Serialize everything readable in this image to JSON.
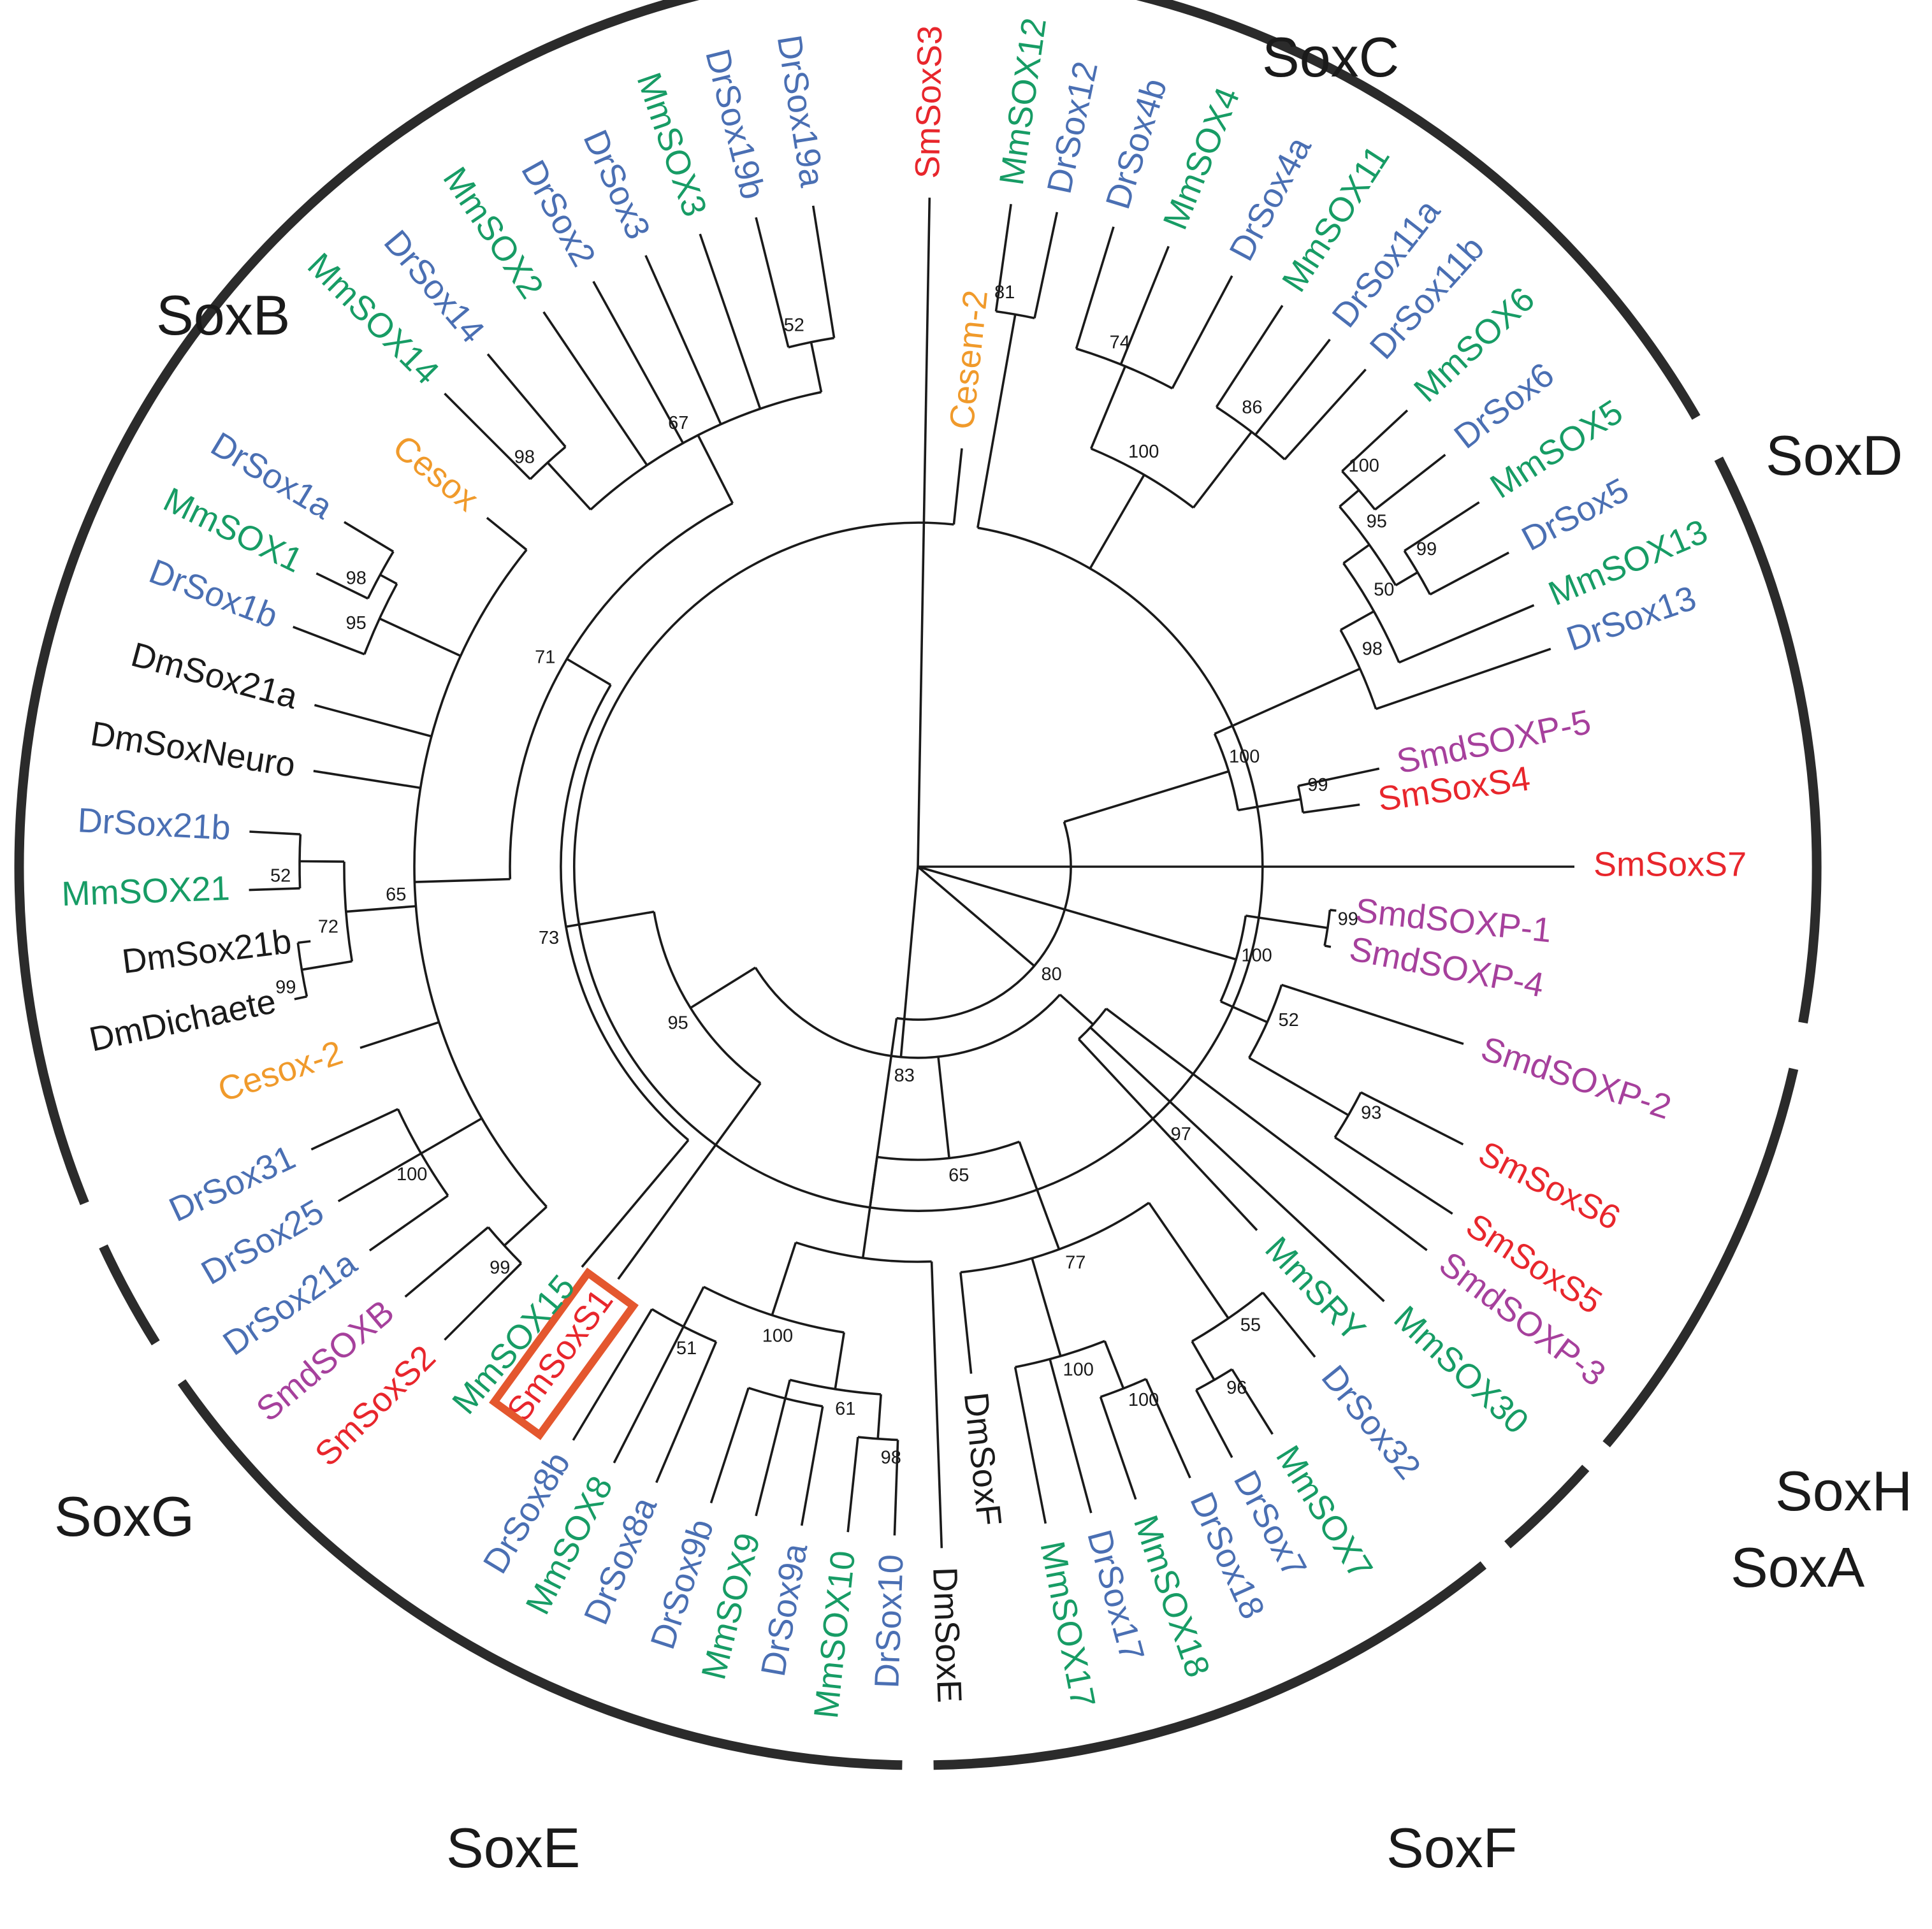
{
  "figure": {
    "type": "circular phylogenetic tree of Sox proteins"
  },
  "colors": {
    "Sm": "#e8262c",
    "Dr": "#4a6fb3",
    "Mm": "#179c65",
    "Smd": "#a6409c",
    "Ce": "#f09a2b",
    "Dm": "#1a1a1a",
    "highlight": "#e4572e"
  },
  "clades": [
    "SoxC",
    "SoxD",
    "SoxH",
    "SoxA",
    "SoxF",
    "SoxE",
    "SoxG",
    "SoxB"
  ],
  "leaves": [
    {
      "label": "SmSoxS3",
      "sp": "Sm"
    },
    {
      "label": "MmSOX12",
      "sp": "Mm"
    },
    {
      "label": "DrSox12",
      "sp": "Dr"
    },
    {
      "label": "DrSox4b",
      "sp": "Dr"
    },
    {
      "label": "MmSOX4",
      "sp": "Mm"
    },
    {
      "label": "DrSox4a",
      "sp": "Dr"
    },
    {
      "label": "MmSOX11",
      "sp": "Mm"
    },
    {
      "label": "DrSox11a",
      "sp": "Dr"
    },
    {
      "label": "DrSox11b",
      "sp": "Dr"
    },
    {
      "label": "MmSOX6",
      "sp": "Mm"
    },
    {
      "label": "DrSox6",
      "sp": "Dr"
    },
    {
      "label": "MmSOX5",
      "sp": "Mm"
    },
    {
      "label": "DrSox5",
      "sp": "Dr"
    },
    {
      "label": "MmSOX13",
      "sp": "Mm"
    },
    {
      "label": "DrSox13",
      "sp": "Dr"
    },
    {
      "label": "SmdSOXP-5",
      "sp": "Smd"
    },
    {
      "label": "SmSoxS4",
      "sp": "Sm"
    },
    {
      "label": "SmSoxS7",
      "sp": "Sm"
    },
    {
      "label": "SmdSOXP-1",
      "sp": "Smd"
    },
    {
      "label": "SmdSOXP-4",
      "sp": "Smd"
    },
    {
      "label": "SmdSOXP-2",
      "sp": "Smd"
    },
    {
      "label": "SmSoxS6",
      "sp": "Sm"
    },
    {
      "label": "SmSoxS5",
      "sp": "Sm"
    },
    {
      "label": "SmdSOXP-3",
      "sp": "Smd"
    },
    {
      "label": "MmSOX30",
      "sp": "Mm"
    },
    {
      "label": "MmSRY",
      "sp": "Mm"
    },
    {
      "label": "DrSox32",
      "sp": "Dr"
    },
    {
      "label": "MmSOX7",
      "sp": "Mm"
    },
    {
      "label": "DrSox7",
      "sp": "Dr"
    },
    {
      "label": "DrSox18",
      "sp": "Dr"
    },
    {
      "label": "MmSOX18",
      "sp": "Mm"
    },
    {
      "label": "DrSox17",
      "sp": "Dr"
    },
    {
      "label": "MmSOX17",
      "sp": "Mm"
    },
    {
      "label": "DmSoxF",
      "sp": "Dm"
    },
    {
      "label": "DmSoxE",
      "sp": "Dm"
    },
    {
      "label": "DrSox10",
      "sp": "Dr"
    },
    {
      "label": "MmSOX10",
      "sp": "Mm"
    },
    {
      "label": "DrSox9a",
      "sp": "Dr"
    },
    {
      "label": "MmSOX9",
      "sp": "Mm"
    },
    {
      "label": "DrSox9b",
      "sp": "Dr"
    },
    {
      "label": "DrSox8a",
      "sp": "Dr"
    },
    {
      "label": "MmSOX8",
      "sp": "Mm"
    },
    {
      "label": "DrSox8b",
      "sp": "Dr"
    },
    {
      "label": "SmSoxS1",
      "sp": "Sm",
      "highlight": true
    },
    {
      "label": "MmSOX15",
      "sp": "Mm"
    },
    {
      "label": "SmSoxS2",
      "sp": "Sm"
    },
    {
      "label": "SmdSOXB",
      "sp": "Smd"
    },
    {
      "label": "DrSox21a",
      "sp": "Dr"
    },
    {
      "label": "DrSox25",
      "sp": "Dr"
    },
    {
      "label": "DrSox31",
      "sp": "Dr"
    },
    {
      "label": "Cesox-2",
      "sp": "Ce"
    },
    {
      "label": "DmDichaete",
      "sp": "Dm"
    },
    {
      "label": "DmSox21b",
      "sp": "Dm"
    },
    {
      "label": "MmSOX21",
      "sp": "Mm"
    },
    {
      "label": "DrSox21b",
      "sp": "Dr"
    },
    {
      "label": "DmSoxNeuro",
      "sp": "Dm"
    },
    {
      "label": "DmSox21a",
      "sp": "Dm"
    },
    {
      "label": "DrSox1b",
      "sp": "Dr"
    },
    {
      "label": "MmSOX1",
      "sp": "Mm"
    },
    {
      "label": "DrSox1a",
      "sp": "Dr"
    },
    {
      "label": "Cesox",
      "sp": "Ce"
    },
    {
      "label": "MmSOX14",
      "sp": "Mm"
    },
    {
      "label": "DrSox14",
      "sp": "Dr"
    },
    {
      "label": "MmSOX2",
      "sp": "Mm"
    },
    {
      "label": "DrSox2",
      "sp": "Dr"
    },
    {
      "label": "DrSox3",
      "sp": "Dr"
    },
    {
      "label": "MmSOX3",
      "sp": "Mm"
    },
    {
      "label": "DrSox19b",
      "sp": "Dr"
    },
    {
      "label": "DrSox19a",
      "sp": "Dr"
    },
    {
      "label": "Cesem-2",
      "sp": "Ce"
    }
  ],
  "tree": {
    "name": "root",
    "children": [
      {
        "name": "n80",
        "boot": "80",
        "children": [
          {
            "name": "nSoxC",
            "children": [
              {
                "name": "n81",
                "boot": "81",
                "children": [
                  {
                    "leaf": "MmSOX12"
                  },
                  {
                    "leaf": "DrSox12"
                  }
                ]
              },
              {
                "name": "n100c",
                "boot": "100",
                "children": [
                  {
                    "name": "n74",
                    "boot": "74",
                    "children": [
                      {
                        "leaf": "DrSox4b"
                      },
                      {
                        "leaf": "MmSOX4"
                      },
                      {
                        "leaf": "DrSox4a"
                      }
                    ]
                  },
                  {
                    "name": "n86",
                    "boot": "86",
                    "children": [
                      {
                        "leaf": "MmSOX11"
                      },
                      {
                        "leaf": "DrSox11a"
                      },
                      {
                        "leaf": "DrSox11b"
                      }
                    ]
                  }
                ]
              },
              {
                "leaf": "Cesem-2"
              }
            ]
          },
          {
            "name": "n100d",
            "boot": "100",
            "children": [
              {
                "name": "n98d",
                "boot": "98",
                "children": [
                  {
                    "name": "n50",
                    "boot": "50",
                    "children": [
                      {
                        "name": "n95d",
                        "boot": "95",
                        "children": [
                          {
                            "name": "n100d2",
                            "boot": "100",
                            "children": [
                              {
                                "leaf": "MmSOX6"
                              },
                              {
                                "leaf": "DrSox6"
                              }
                            ]
                          },
                          {
                            "name": "n99d",
                            "boot": "99",
                            "children": [
                              {
                                "leaf": "MmSOX5"
                              },
                              {
                                "leaf": "DrSox5"
                              }
                            ]
                          }
                        ]
                      },
                      {
                        "leaf": "MmSOX13"
                      }
                    ]
                  },
                  {
                    "leaf": "DrSox13"
                  }
                ]
              },
              {
                "name": "n99s",
                "boot": "99",
                "children": [
                  {
                    "leaf": "SmdSOXP-5"
                  },
                  {
                    "leaf": "SmSoxS4"
                  }
                ]
              }
            ]
          }
        ]
      },
      {
        "leaf": "SmSoxS7"
      },
      {
        "name": "n100h",
        "boot": "100",
        "children": [
          {
            "name": "n99h",
            "boot": "99",
            "children": [
              {
                "leaf": "SmdSOXP-1"
              },
              {
                "leaf": "SmdSOXP-4"
              }
            ]
          },
          {
            "name": "n52h",
            "boot": "52",
            "children": [
              {
                "leaf": "SmdSOXP-2"
              },
              {
                "name": "n93",
                "boot": "93",
                "children": [
                  {
                    "leaf": "SmSoxS6"
                  },
                  {
                    "leaf": "SmSoxS5"
                  }
                ]
              }
            ]
          }
        ]
      },
      {
        "name": "n83",
        "boot": "83",
        "children": [
          {
            "name": "nSoxA",
            "children": [
              {
                "leaf": "SmdSOXP-3"
              },
              {
                "leaf": "MmSOX30"
              },
              {
                "name": "n97",
                "boot": "97",
                "children": [
                  {
                    "leaf": "MmSRY"
                  }
                ]
              }
            ]
          },
          {
            "name": "n65",
            "boot": "65",
            "children": [
              {
                "name": "n77",
                "boot": "77",
                "children": [
                  {
                    "name": "n55",
                    "boot": "55",
                    "children": [
                      {
                        "leaf": "DrSox32"
                      },
                      {
                        "name": "n96",
                        "boot": "96",
                        "children": [
                          {
                            "leaf": "MmSOX7"
                          },
                          {
                            "leaf": "DrSox7"
                          }
                        ]
                      }
                    ]
                  },
                  {
                    "name": "n100f",
                    "boot": "100",
                    "children": [
                      {
                        "name": "n100f2",
                        "boot": "100",
                        "children": [
                          {
                            "leaf": "DrSox18"
                          },
                          {
                            "leaf": "MmSOX18"
                          }
                        ]
                      },
                      {
                        "leaf": "DrSox17"
                      },
                      {
                        "leaf": "MmSOX17"
                      }
                    ]
                  },
                  {
                    "leaf": "DmSoxF"
                  }
                ]
              },
              {
                "name": "nSoxE",
                "children": [
                  {
                    "leaf": "DmSoxE"
                  },
                  {
                    "name": "n100e",
                    "boot": "100",
                    "children": [
                      {
                        "name": "n61",
                        "boot": "61",
                        "children": [
                          {
                            "name": "n98e",
                            "boot": "98",
                            "children": [
                              {
                                "leaf": "DrSox10"
                              },
                              {
                                "leaf": "MmSOX10"
                              }
                            ]
                          },
                          {
                            "name": "n9",
                            "children": [
                              {
                                "leaf": "DrSox9a"
                              },
                              {
                                "leaf": "MmSOX9"
                              },
                              {
                                "leaf": "DrSox9b"
                              }
                            ]
                          }
                        ]
                      },
                      {
                        "name": "n51",
                        "boot": "51",
                        "children": [
                          {
                            "leaf": "DrSox8a"
                          },
                          {
                            "leaf": "MmSOX8"
                          },
                          {
                            "leaf": "DrSox8b"
                          }
                        ]
                      }
                    ]
                  }
                ]
              }
            ]
          },
          {
            "name": "n95b",
            "boot": "95",
            "children": [
              {
                "leaf": "SmSoxS1"
              },
              {
                "name": "n73",
                "boot": "73",
                "children": [
                  {
                    "leaf": "MmSOX15"
                  },
                  {
                    "name": "n71",
                    "boot": "71",
                    "children": [
                      {
                        "name": "n65b",
                        "boot": "65",
                        "children": [
                          {
                            "name": "n99b",
                            "boot": "99",
                            "children": [
                              {
                                "leaf": "SmSoxS2"
                              },
                              {
                                "leaf": "SmdSOXB"
                              }
                            ]
                          },
                          {
                            "name": "n100b",
                            "boot": "100",
                            "children": [
                              {
                                "leaf": "DrSox21a"
                              },
                              {
                                "leaf": "DrSox25"
                              },
                              {
                                "leaf": "DrSox31"
                              }
                            ]
                          },
                          {
                            "leaf": "Cesox-2"
                          },
                          {
                            "name": "n72",
                            "boot": "72",
                            "children": [
                              {
                                "name": "n99b2",
                                "boot": "99",
                                "children": [
                                  {
                                    "leaf": "DmDichaete"
                                  },
                                  {
                                    "leaf": "DmSox21b"
                                  }
                                ]
                              },
                              {
                                "name": "n52b",
                                "boot": "52",
                                "children": [
                                  {
                                    "leaf": "MmSOX21"
                                  },
                                  {
                                    "leaf": "DrSox21b"
                                  }
                                ]
                              }
                            ]
                          },
                          {
                            "leaf": "DmSoxNeuro"
                          },
                          {
                            "leaf": "DmSox21a"
                          },
                          {
                            "name": "n95bb",
                            "boot": "95",
                            "children": [
                              {
                                "leaf": "DrSox1b"
                              },
                              {
                                "name": "n98bb",
                                "boot": "98",
                                "children": [
                                  {
                                    "leaf": "MmSOX1"
                                  },
                                  {
                                    "leaf": "DrSox1a"
                                  }
                                ]
                              }
                            ]
                          },
                          {
                            "leaf": "Cesox"
                          }
                        ]
                      },
                      {
                        "name": "n67",
                        "boot": "67",
                        "children": [
                          {
                            "name": "n98b",
                            "boot": "98",
                            "children": [
                              {
                                "leaf": "MmSOX14"
                              },
                              {
                                "leaf": "DrSox14"
                              }
                            ]
                          },
                          {
                            "leaf": "MmSOX2"
                          },
                          {
                            "leaf": "DrSox2"
                          },
                          {
                            "leaf": "DrSox3"
                          },
                          {
                            "leaf": "MmSOX3"
                          },
                          {
                            "name": "n52s",
                            "boot": "52",
                            "children": [
                              {
                                "leaf": "DrSox19b"
                              },
                              {
                                "leaf": "DrSox19a"
                              }
                            ]
                          }
                        ]
                      }
                    ]
                  }
                ]
              }
            ]
          }
        ]
      },
      {
        "leaf": "SmSoxS3"
      }
    ]
  }
}
